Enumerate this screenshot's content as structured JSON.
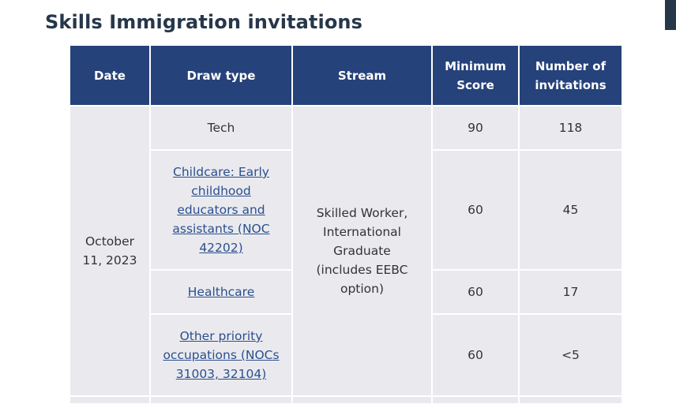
{
  "page": {
    "title": "Skills Immigration invitations"
  },
  "table": {
    "headers": {
      "date": "Date",
      "draw_type": "Draw type",
      "stream": "Stream",
      "min_score": "Minimum Score",
      "invitations": "Number of invitations"
    },
    "date": "October 11, 2023",
    "stream": "Skilled Worker, International Graduate (includes EEBC option)",
    "rows": [
      {
        "draw_type": "Tech",
        "is_link": false,
        "min_score": "90",
        "invitations": "118"
      },
      {
        "draw_type": "Childcare: Early childhood educators and assistants (NOC 42202)",
        "is_link": true,
        "min_score": "60",
        "invitations": "45"
      },
      {
        "draw_type": "Healthcare",
        "is_link": true,
        "min_score": "60",
        "invitations": "17"
      },
      {
        "draw_type": "Other priority occupations (NOCs 31003, 32104)",
        "is_link": true,
        "min_score": "60",
        "invitations": "<5"
      }
    ]
  },
  "colors": {
    "header_bg": "#26427a",
    "title": "#26374a",
    "cell_bg": "#eaeaee",
    "link": "#2b4f8f"
  }
}
